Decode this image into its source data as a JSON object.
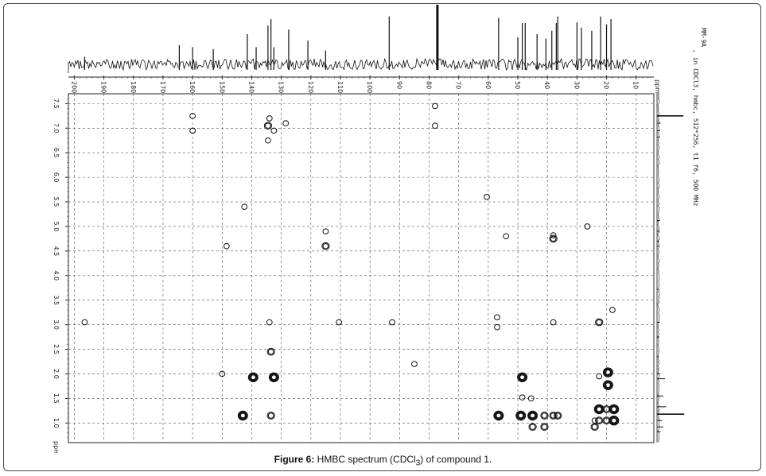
{
  "caption": {
    "figure_label": "Figure 6:",
    "text_pre": " HMBC spectrum (CDCl",
    "subscript": "3",
    "text_post": ") of compound 1."
  },
  "side_text": {
    "line1": "MM-9A",
    "line2": ", in CDCl3, hmbc, 512*256, t1 f6, 500 MHz"
  },
  "chart_data": {
    "type": "scatter",
    "title": "",
    "xlabel": "ppm",
    "ylabel": "ppm",
    "x_axis": {
      "label": "ppm",
      "reversed": true,
      "range": [
        202,
        4
      ],
      "ticks": [
        200,
        190,
        180,
        170,
        160,
        150,
        140,
        130,
        120,
        110,
        100,
        90,
        80,
        70,
        60,
        50,
        40,
        30,
        20,
        10
      ],
      "tick_labels": [
        "200",
        "190",
        "180",
        "170",
        "160",
        "150",
        "140",
        "130",
        "120",
        "110",
        "100",
        "90",
        "80",
        "70",
        "60",
        "50",
        "40",
        "30",
        "20",
        "10"
      ]
    },
    "y_axis": {
      "label": "ppm",
      "reversed": true,
      "range": [
        7.7,
        0.6
      ],
      "ticks": [
        7.5,
        7.0,
        6.5,
        6.0,
        5.5,
        5.0,
        4.5,
        4.0,
        3.5,
        3.0,
        2.5,
        2.0,
        1.5,
        1.0
      ],
      "tick_labels": [
        "7.5",
        "7.0",
        "6.5",
        "6.0",
        "5.5",
        "5.0",
        "4.5",
        "4.0",
        "3.5",
        "3.0",
        "2.5",
        "2.0",
        "1.5",
        "1.0"
      ]
    },
    "grid": true,
    "c13_peaks": [
      {
        "ppm": 196.5,
        "h": 0.2
      },
      {
        "ppm": 164.5,
        "h": 0.38
      },
      {
        "ppm": 160.0,
        "h": 0.35
      },
      {
        "ppm": 153.0,
        "h": 0.32
      },
      {
        "ppm": 141.5,
        "h": 0.55
      },
      {
        "ppm": 138.5,
        "h": 0.35
      },
      {
        "ppm": 134.5,
        "h": 0.68
      },
      {
        "ppm": 133.5,
        "h": 0.78
      },
      {
        "ppm": 132.5,
        "h": 0.35
      },
      {
        "ppm": 127.5,
        "h": 0.62
      },
      {
        "ppm": 121.0,
        "h": 0.45
      },
      {
        "ppm": 115.0,
        "h": 0.3
      },
      {
        "ppm": 93.5,
        "h": 0.82
      },
      {
        "ppm": 77.2,
        "h": 1.0
      },
      {
        "ppm": 56.5,
        "h": 0.8
      },
      {
        "ppm": 50.0,
        "h": 0.5
      },
      {
        "ppm": 48.5,
        "h": 0.72
      },
      {
        "ppm": 47.5,
        "h": 0.72
      },
      {
        "ppm": 43.5,
        "h": 0.55
      },
      {
        "ppm": 40.5,
        "h": 0.48
      },
      {
        "ppm": 38.5,
        "h": 0.6
      },
      {
        "ppm": 37.0,
        "h": 0.72
      },
      {
        "ppm": 36.5,
        "h": 0.82
      },
      {
        "ppm": 30.0,
        "h": 0.73
      },
      {
        "ppm": 28.5,
        "h": 0.65
      },
      {
        "ppm": 25.0,
        "h": 0.6
      },
      {
        "ppm": 22.0,
        "h": 0.82
      },
      {
        "ppm": 20.0,
        "h": 0.7
      },
      {
        "ppm": 18.5,
        "h": 0.78
      }
    ],
    "h1_peaks": [
      {
        "ppm": 7.25,
        "h": 0.92
      },
      {
        "ppm": 7.1,
        "h": 0.12
      },
      {
        "ppm": 6.95,
        "h": 0.1
      },
      {
        "ppm": 6.82,
        "h": 0.1
      },
      {
        "ppm": 5.12,
        "h": 0.1
      },
      {
        "ppm": 4.9,
        "h": 0.08
      },
      {
        "ppm": 4.7,
        "h": 0.08
      },
      {
        "ppm": 4.6,
        "h": 0.08
      },
      {
        "ppm": 3.72,
        "h": 0.05
      },
      {
        "ppm": 3.05,
        "h": 0.1
      },
      {
        "ppm": 2.75,
        "h": 0.08
      },
      {
        "ppm": 2.35,
        "h": 0.06
      },
      {
        "ppm": 2.0,
        "h": 0.12
      },
      {
        "ppm": 1.9,
        "h": 0.28
      },
      {
        "ppm": 1.55,
        "h": 0.22
      },
      {
        "ppm": 1.33,
        "h": 0.32
      },
      {
        "ppm": 1.18,
        "h": 0.95
      },
      {
        "ppm": 1.05,
        "h": 0.18
      },
      {
        "ppm": 0.92,
        "h": 0.22
      },
      {
        "ppm": 0.82,
        "h": 0.12
      }
    ],
    "cross_peaks": [
      {
        "x": 78.0,
        "y": 7.45,
        "w": 1
      },
      {
        "x": 78.0,
        "y": 7.05,
        "w": 1
      },
      {
        "x": 160.0,
        "y": 7.25,
        "w": 1
      },
      {
        "x": 160.0,
        "y": 6.95,
        "w": 1
      },
      {
        "x": 134.0,
        "y": 7.2,
        "w": 1
      },
      {
        "x": 134.5,
        "y": 7.05,
        "w": 2
      },
      {
        "x": 132.5,
        "y": 6.95,
        "w": 1
      },
      {
        "x": 134.5,
        "y": 6.75,
        "w": 1
      },
      {
        "x": 142.5,
        "y": 5.4,
        "w": 1
      },
      {
        "x": 115.0,
        "y": 4.6,
        "w": 2
      },
      {
        "x": 115.0,
        "y": 4.9,
        "w": 1
      },
      {
        "x": 38.0,
        "y": 4.75,
        "w": 2
      },
      {
        "x": 38.0,
        "y": 4.82,
        "w": 1
      },
      {
        "x": 196.5,
        "y": 3.05,
        "w": 1
      },
      {
        "x": 92.5,
        "y": 3.05,
        "w": 1
      },
      {
        "x": 57.0,
        "y": 3.15,
        "w": 1
      },
      {
        "x": 57.0,
        "y": 2.95,
        "w": 1
      },
      {
        "x": 38.0,
        "y": 3.05,
        "w": 1
      },
      {
        "x": 22.5,
        "y": 3.05,
        "w": 2
      },
      {
        "x": 133.5,
        "y": 2.45,
        "w": 2
      },
      {
        "x": 134.0,
        "y": 3.05,
        "w": 1
      },
      {
        "x": 139.5,
        "y": 1.93,
        "w": 3
      },
      {
        "x": 132.5,
        "y": 1.93,
        "w": 3
      },
      {
        "x": 48.5,
        "y": 1.93,
        "w": 3
      },
      {
        "x": 19.5,
        "y": 2.03,
        "w": 3
      },
      {
        "x": 19.5,
        "y": 1.77,
        "w": 3
      },
      {
        "x": 143.0,
        "y": 1.15,
        "w": 3
      },
      {
        "x": 133.5,
        "y": 1.15,
        "w": 2
      },
      {
        "x": 56.5,
        "y": 1.15,
        "w": 3
      },
      {
        "x": 49.0,
        "y": 1.15,
        "w": 3
      },
      {
        "x": 45.0,
        "y": 1.15,
        "w": 3
      },
      {
        "x": 41.0,
        "y": 1.15,
        "w": 2
      },
      {
        "x": 38.0,
        "y": 1.15,
        "w": 2
      },
      {
        "x": 36.5,
        "y": 1.15,
        "w": 2
      },
      {
        "x": 22.5,
        "y": 1.28,
        "w": 3
      },
      {
        "x": 22.5,
        "y": 1.05,
        "w": 2
      },
      {
        "x": 20.0,
        "y": 1.05,
        "w": 2
      },
      {
        "x": 17.5,
        "y": 1.05,
        "w": 3
      },
      {
        "x": 17.5,
        "y": 1.28,
        "w": 3
      },
      {
        "x": 20.0,
        "y": 1.28,
        "w": 2
      },
      {
        "x": 24.0,
        "y": 0.92,
        "w": 2
      },
      {
        "x": 45.0,
        "y": 0.92,
        "w": 2
      },
      {
        "x": 41.0,
        "y": 0.92,
        "w": 2
      },
      {
        "x": 48.5,
        "y": 1.52,
        "w": 1
      },
      {
        "x": 22.5,
        "y": 1.95,
        "w": 1
      },
      {
        "x": 45.5,
        "y": 1.5,
        "w": 1
      },
      {
        "x": 24.0,
        "y": 1.05,
        "w": 1
      },
      {
        "x": 54.0,
        "y": 4.8,
        "w": 1
      },
      {
        "x": 26.5,
        "y": 5.0,
        "w": 1
      },
      {
        "x": 18.0,
        "y": 3.3,
        "w": 1
      },
      {
        "x": 150.0,
        "y": 2.0,
        "w": 1
      },
      {
        "x": 85.0,
        "y": 2.2,
        "w": 1
      },
      {
        "x": 148.5,
        "y": 4.6,
        "w": 1
      },
      {
        "x": 128.5,
        "y": 7.1,
        "w": 1
      },
      {
        "x": 110.5,
        "y": 3.05,
        "w": 1
      },
      {
        "x": 60.5,
        "y": 5.6,
        "w": 1
      }
    ]
  }
}
